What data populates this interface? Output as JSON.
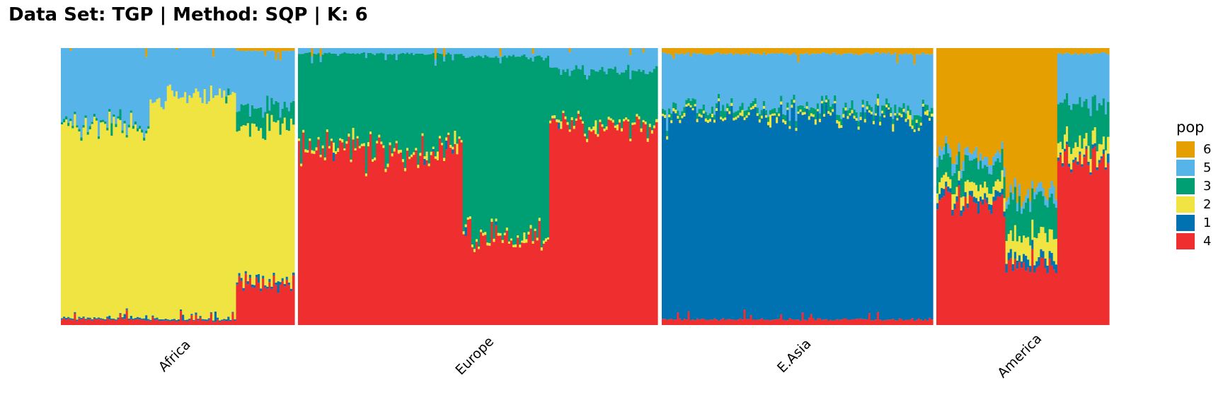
{
  "title": "Data Set: TGP | Method: SQP | K: 6",
  "chart_data": {
    "type": "stacked-bar",
    "description_free": true,
    "legend": {
      "title": "pop",
      "items": [
        {
          "label": "6",
          "color": "#E69F00"
        },
        {
          "label": "5",
          "color": "#56B4E9"
        },
        {
          "label": "3",
          "color": "#009E73"
        },
        {
          "label": "2",
          "color": "#F0E442"
        },
        {
          "label": "1",
          "color": "#0072B2"
        },
        {
          "label": "4",
          "color": "#EE2E2F"
        }
      ]
    },
    "stack_order_bottom_to_top": [
      "4",
      "1",
      "2",
      "3",
      "5",
      "6"
    ],
    "ylim": [
      0,
      1
    ],
    "panels": [
      {
        "label": "Africa",
        "bar_count": 108,
        "segments": [
          {
            "range": [
              0.0,
              0.38
            ],
            "mean": {
              "4": 0.02,
              "1": 0.005,
              "2": 0.7,
              "3": 0.01,
              "5": 0.265,
              "6": 0.0
            }
          },
          {
            "range": [
              0.38,
              0.75
            ],
            "mean": {
              "4": 0.015,
              "1": 0.005,
              "2": 0.81,
              "3": 0.0,
              "5": 0.17,
              "6": 0.0
            }
          },
          {
            "range": [
              0.75,
              1.0
            ],
            "mean": {
              "4": 0.15,
              "1": 0.01,
              "2": 0.56,
              "3": 0.07,
              "5": 0.2,
              "6": 0.01
            }
          }
        ]
      },
      {
        "label": "Europe",
        "bar_count": 166,
        "segments": [
          {
            "range": [
              0.0,
              0.46
            ],
            "mean": {
              "4": 0.63,
              "1": 0.0,
              "2": 0.01,
              "3": 0.34,
              "5": 0.02,
              "6": 0.0
            }
          },
          {
            "range": [
              0.46,
              0.7
            ],
            "mean": {
              "4": 0.31,
              "1": 0.0,
              "2": 0.01,
              "3": 0.65,
              "5": 0.03,
              "6": 0.0
            }
          },
          {
            "range": [
              0.7,
              1.0
            ],
            "mean": {
              "4": 0.72,
              "1": 0.0,
              "2": 0.01,
              "3": 0.19,
              "5": 0.08,
              "6": 0.0
            }
          }
        ]
      },
      {
        "label": "E.Asia",
        "bar_count": 126,
        "segments": [
          {
            "range": [
              0.0,
              1.0
            ],
            "mean": {
              "4": 0.02,
              "1": 0.74,
              "2": 0.01,
              "3": 0.02,
              "5": 0.19,
              "6": 0.02
            }
          }
        ]
      },
      {
        "label": "America",
        "bar_count": 80,
        "segments": [
          {
            "range": [
              0.0,
              0.4
            ],
            "mean": {
              "4": 0.45,
              "1": 0.02,
              "2": 0.04,
              "3": 0.08,
              "5": 0.03,
              "6": 0.38
            }
          },
          {
            "range": [
              0.4,
              0.7
            ],
            "mean": {
              "4": 0.22,
              "1": 0.03,
              "2": 0.08,
              "3": 0.12,
              "5": 0.03,
              "6": 0.52
            }
          },
          {
            "range": [
              0.7,
              1.0
            ],
            "mean": {
              "4": 0.6,
              "1": 0.01,
              "2": 0.05,
              "3": 0.14,
              "5": 0.18,
              "6": 0.02
            }
          }
        ]
      }
    ]
  }
}
